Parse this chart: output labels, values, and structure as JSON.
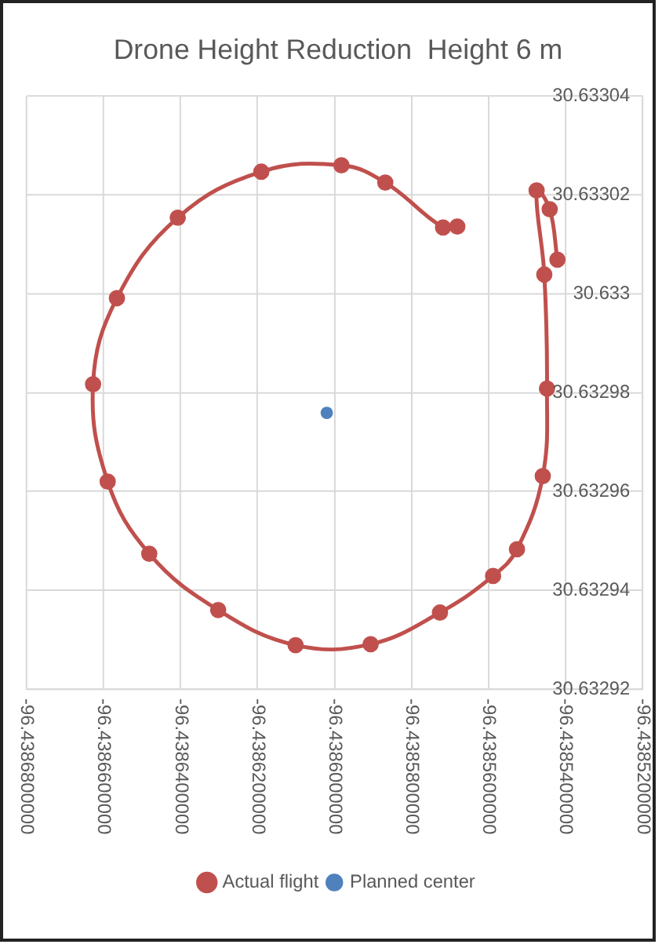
{
  "chart_data": {
    "type": "line",
    "title": "Drone Height Reduction  Height 6 m",
    "xlim": [
      -96.43868,
      -96.43852
    ],
    "xticks": [
      {
        "value": -96.43868,
        "label": "-96.4386800000"
      },
      {
        "value": -96.43866,
        "label": "-96.4386600000"
      },
      {
        "value": -96.43864,
        "label": "-96.4386400000"
      },
      {
        "value": -96.43862,
        "label": "-96.4386200000"
      },
      {
        "value": -96.4386,
        "label": "-96.4386000000"
      },
      {
        "value": -96.43858,
        "label": "-96.4385800000"
      },
      {
        "value": -96.43856,
        "label": "-96.4385600000"
      },
      {
        "value": -96.43854,
        "label": "-96.4385400000"
      },
      {
        "value": -96.43852,
        "label": "-96.4385200000"
      }
    ],
    "ylim": [
      30.63292,
      30.63304
    ],
    "yticks": [
      30.63292,
      30.63294,
      30.63296,
      30.63298,
      30.633,
      30.63302,
      30.63304
    ],
    "grid": true,
    "legend": "bottom",
    "marker": "circle",
    "series": [
      {
        "name": "Actual flight",
        "type": "line",
        "color": "#c0504d",
        "x": [
          -96.4385421,
          -96.4385441,
          -96.4385475,
          -96.4385455,
          -96.4385448,
          -96.4385459,
          -96.4385526,
          -96.4385588,
          -96.4385726,
          -96.4385906,
          -96.4386101,
          -96.4386302,
          -96.4386481,
          -96.4386589,
          -96.4386627,
          -96.4386565,
          -96.4386407,
          -96.438619,
          -96.4385982,
          -96.4385868,
          -96.4385718,
          -96.4385681
        ],
        "values": [
          30.6330069,
          30.6330171,
          30.6330209,
          30.6330039,
          30.6329808,
          30.6329631,
          30.6329483,
          30.6329429,
          30.6329355,
          30.6329291,
          30.6329289,
          30.632936,
          30.6329474,
          30.632962,
          30.6329817,
          30.6329991,
          30.6330154,
          30.6330247,
          30.633026,
          30.6330225,
          30.6330134,
          30.6330136
        ]
      },
      {
        "name": "Planned center",
        "type": "scatter",
        "color": "#4f81bd",
        "x": [
          -96.438602
        ],
        "values": [
          30.6329759
        ]
      }
    ]
  }
}
